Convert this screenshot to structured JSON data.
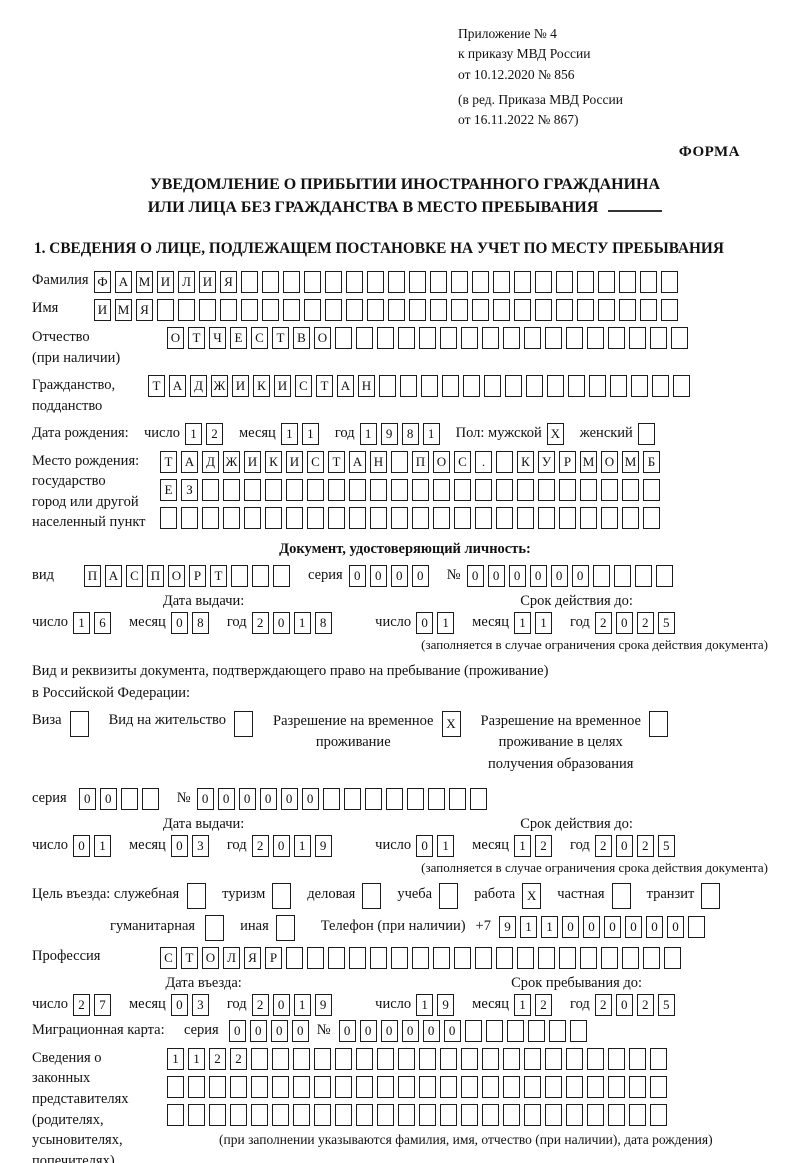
{
  "colors": {
    "ink": "#111111",
    "box_border": "#1c1c1c"
  },
  "date_words": {
    "day": "число",
    "month": "месяц",
    "year": "год"
  },
  "header": {
    "appendix_lines": [
      "Приложение № 4",
      "к приказу МВД России",
      "от 10.12.2020 № 856"
    ],
    "edition_lines": [
      "(в ред. Приказа МВД России",
      "от 16.11.2022 № 867)"
    ],
    "form_label": "ФОРМА"
  },
  "title": {
    "line1": "УВЕДОМЛЕНИЕ О ПРИБЫТИИ ИНОСТРАННОГО ГРАЖДАНИНА",
    "line2": "ИЛИ ЛИЦА БЕЗ ГРАЖДАНСТВА В МЕСТО ПРЕБЫВАНИЯ"
  },
  "section1": {
    "heading": "1. СВЕДЕНИЯ О ЛИЦЕ, ПОДЛЕЖАЩЕМ ПОСТАНОВКЕ НА УЧЕТ ПО МЕСТУ ПРЕБЫВАНИЯ",
    "surname": {
      "label": "Фамилия",
      "grid": {
        "n": 28,
        "v": "ФАМИЛИЯ"
      }
    },
    "name": {
      "label": "Имя",
      "grid": {
        "n": 28,
        "v": "ИМЯ"
      }
    },
    "patronymic": {
      "label1": "Отчество",
      "label2": "(при наличии)",
      "grid": {
        "n": 25,
        "v": "ОТЧЕСТВО"
      }
    },
    "citizenship": {
      "label1": "Гражданство,",
      "label2": "подданство",
      "grid": {
        "n": 26,
        "v": "ТАДЖИКИСТАН"
      }
    },
    "birth_date": {
      "label": "Дата рождения:",
      "day": {
        "n": 2,
        "v": "12"
      },
      "month": {
        "n": 2,
        "v": "11"
      },
      "year": {
        "n": 4,
        "v": "1981"
      },
      "gender_label": "Пол: мужской",
      "male_box": {
        "n": 1,
        "v": "X"
      },
      "female_label": "женский",
      "female_box": {
        "n": 1,
        "v": ""
      }
    },
    "birth_place": {
      "label1": "Место рождения:",
      "label2": "государство",
      "label3": "город или другой",
      "label4": "населенный пункт",
      "row1": {
        "n": 24,
        "v": "ТАДЖИКИСТАН ПОС. КУРМОМБ"
      },
      "row2": {
        "n": 24,
        "v": "ЕЗ"
      },
      "row3": {
        "n": 24,
        "v": ""
      }
    },
    "identity_doc": {
      "heading": "Документ, удостоверяющий личность:",
      "type_label": "вид",
      "type": {
        "n": 10,
        "v": "ПАСПОРТ"
      },
      "series_label": "серия",
      "series": {
        "n": 4,
        "v": "0000"
      },
      "number_label": "№",
      "number": {
        "n": 10,
        "v": "000000"
      },
      "issue_title": "Дата выдачи:",
      "issue": {
        "day": {
          "n": 2,
          "v": "16"
        },
        "month": {
          "n": 2,
          "v": "08"
        },
        "year": {
          "n": 4,
          "v": "2018"
        }
      },
      "expiry_title": "Срок действия до:",
      "expiry": {
        "day": {
          "n": 2,
          "v": "01"
        },
        "month": {
          "n": 2,
          "v": "11"
        },
        "year": {
          "n": 4,
          "v": "2025"
        }
      },
      "note": "(заполняется в случае ограничения срока действия документа)"
    },
    "residence_doc": {
      "heading_line1": "Вид и реквизиты документа, подтверждающего право на пребывание (проживание)",
      "heading_line2": "в Российской Федерации:",
      "visa_label": "Виза",
      "visa_box": {
        "n": 1,
        "v": ""
      },
      "permit_label": "Вид на жительство",
      "permit_box": {
        "n": 1,
        "v": ""
      },
      "temp_label1": "Разрешение на временное",
      "temp_label2": "проживание",
      "temp_box": {
        "n": 1,
        "v": "X"
      },
      "edu_label1": "Разрешение на временное",
      "edu_label2": "проживание в целях",
      "edu_label3": "получения образования",
      "edu_box": {
        "n": 1,
        "v": ""
      },
      "series_label": "серия",
      "series": {
        "n": 4,
        "v": "00"
      },
      "number_label": "№",
      "number": {
        "n": 14,
        "v": "000000"
      },
      "issue_title": "Дата выдачи:",
      "issue": {
        "day": {
          "n": 2,
          "v": "01"
        },
        "month": {
          "n": 2,
          "v": "03"
        },
        "year": {
          "n": 4,
          "v": "2019"
        }
      },
      "expiry_title": "Срок действия до:",
      "expiry": {
        "day": {
          "n": 2,
          "v": "01"
        },
        "month": {
          "n": 2,
          "v": "12"
        },
        "year": {
          "n": 4,
          "v": "2025"
        }
      },
      "note": "(заполняется в случае ограничения срока действия документа)"
    },
    "visit_purpose": {
      "label": "Цель въезда: служебная",
      "options": [
        {
          "label": "туризм",
          "box": {
            "n": 1,
            "v": ""
          }
        },
        {
          "label": "деловая",
          "box": {
            "n": 1,
            "v": ""
          }
        },
        {
          "label": "учеба",
          "box": {
            "n": 1,
            "v": ""
          }
        },
        {
          "label": "работа",
          "box": {
            "n": 1,
            "v": "X"
          }
        },
        {
          "label": "частная",
          "box": {
            "n": 1,
            "v": ""
          }
        },
        {
          "label": "транзит",
          "box": {
            "n": 1,
            "v": ""
          }
        }
      ],
      "first_box": {
        "n": 1,
        "v": ""
      },
      "row2_options": [
        {
          "label": "гуманитарная",
          "box": {
            "n": 1,
            "v": ""
          }
        },
        {
          "label": "иная",
          "box": {
            "n": 1,
            "v": ""
          }
        }
      ],
      "phone_label": "Телефон (при наличии)",
      "phone_prefix": "+7",
      "phone": {
        "n": 10,
        "v": "911000000"
      }
    },
    "profession": {
      "label": "Профессия",
      "grid": {
        "n": 25,
        "v": "СТОЛЯР"
      }
    },
    "entry_date": {
      "title": "Дата въезда:",
      "day": {
        "n": 2,
        "v": "27"
      },
      "month": {
        "n": 2,
        "v": "03"
      },
      "year": {
        "n": 4,
        "v": "2019"
      }
    },
    "stay_until": {
      "title": "Срок пребывания до:",
      "day": {
        "n": 2,
        "v": "19"
      },
      "month": {
        "n": 2,
        "v": "12"
      },
      "year": {
        "n": 4,
        "v": "2025"
      }
    },
    "migration_card": {
      "label": "Миграционная карта:",
      "series_label": "серия",
      "series": {
        "n": 4,
        "v": "0000"
      },
      "number_label": "№",
      "number": {
        "n": 12,
        "v": "000000"
      }
    },
    "legal_reps": {
      "label_lines": [
        "Сведения о",
        "законных",
        "представителях",
        "(родителях,",
        "усыновителях,",
        "попечителях)"
      ],
      "row1": {
        "n": 24,
        "v": "1122"
      },
      "row2": {
        "n": 24,
        "v": ""
      },
      "row3": {
        "n": 24,
        "v": ""
      },
      "note": "(при заполнении указываются фамилия, имя, отчество (при наличии), дата рождения)"
    }
  }
}
